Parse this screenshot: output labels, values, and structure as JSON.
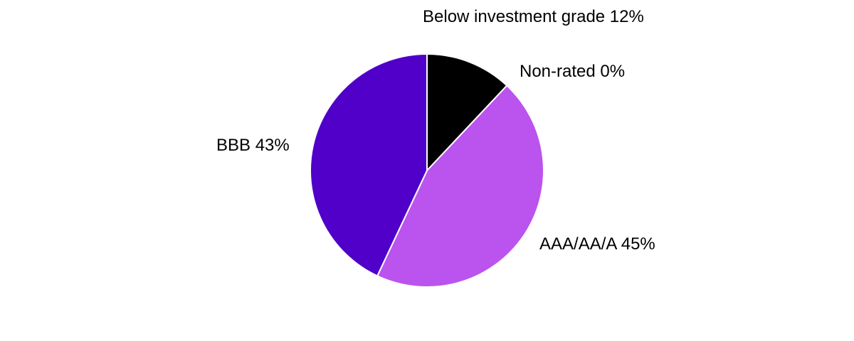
{
  "chart_data": {
    "type": "pie",
    "slices": [
      {
        "label": "Below investment grade  12%",
        "category": "Below investment grade",
        "value": 12,
        "color": "#000000"
      },
      {
        "label": "Non-rated 0%",
        "category": "Non-rated",
        "value": 0,
        "color": "#808080"
      },
      {
        "label": "AAA/AA/A 45%",
        "category": "AAA/AA/A",
        "value": 45,
        "color": "#bb53ee"
      },
      {
        "label": "BBB 43%",
        "category": "BBB",
        "value": 43,
        "color": "#5000c8"
      }
    ],
    "start_angle_deg": 0,
    "direction": "clockwise",
    "slice_border_color": "#ffffff",
    "legend": "none"
  }
}
